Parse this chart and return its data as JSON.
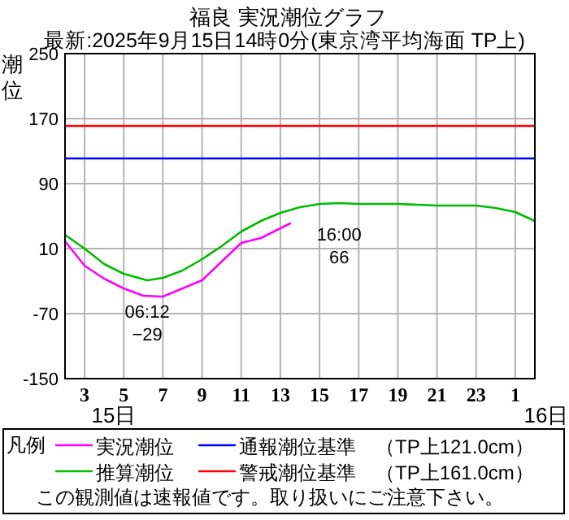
{
  "chart_data": {
    "type": "line",
    "title": "福良 実況潮位グラフ",
    "subtitle": "最新:2025年9月15日14時0分(東京湾平均海面 TP上)",
    "ylabel": "潮位",
    "xlim": [
      "2025-09-15T02:00",
      "2025-09-16T02:00"
    ],
    "xticks": [
      {
        "value": "2025-09-15T03:00",
        "label": "3"
      },
      {
        "value": "2025-09-15T05:00",
        "label": "5"
      },
      {
        "value": "2025-09-15T07:00",
        "label": "7"
      },
      {
        "value": "2025-09-15T09:00",
        "label": "9"
      },
      {
        "value": "2025-09-15T11:00",
        "label": "11"
      },
      {
        "value": "2025-09-15T13:00",
        "label": "13"
      },
      {
        "value": "2025-09-15T15:00",
        "label": "15"
      },
      {
        "value": "2025-09-15T17:00",
        "label": "17"
      },
      {
        "value": "2025-09-15T19:00",
        "label": "19"
      },
      {
        "value": "2025-09-15T21:00",
        "label": "21"
      },
      {
        "value": "2025-09-15T23:00",
        "label": "23"
      },
      {
        "value": "2025-09-16T01:00",
        "label": "1"
      }
    ],
    "ylim": [
      -150,
      250
    ],
    "yticks": [
      -150,
      -70,
      10,
      90,
      170,
      250
    ],
    "grid": true,
    "legend": "bottom",
    "legend_title": "凡例",
    "marker": "none",
    "line_style": "solid",
    "series": [
      {
        "name": "実況潮位",
        "color": "#ff00ff",
        "x": [
          "2025-09-15T02:00",
          "2025-09-15T03:00",
          "2025-09-15T04:00",
          "2025-09-15T05:00",
          "2025-09-15T06:00",
          "2025-09-15T07:00",
          "2025-09-15T08:00",
          "2025-09-15T09:00",
          "2025-09-15T10:00",
          "2025-09-15T11:00",
          "2025-09-15T12:00",
          "2025-09-15T13:00",
          "2025-09-15T13:30"
        ],
        "values": [
          19,
          -11,
          -27,
          -39,
          -48,
          -49,
          -39,
          -29,
          -6,
          17,
          23,
          35,
          41
        ]
      },
      {
        "name": "推算潮位",
        "color": "#00bb00",
        "x": [
          "2025-09-15T02:00",
          "2025-09-15T03:00",
          "2025-09-15T04:00",
          "2025-09-15T05:00",
          "2025-09-15T06:12",
          "2025-09-15T07:00",
          "2025-09-15T08:00",
          "2025-09-15T09:00",
          "2025-09-15T10:00",
          "2025-09-15T11:00",
          "2025-09-15T12:00",
          "2025-09-15T13:00",
          "2025-09-15T14:00",
          "2025-09-15T15:00",
          "2025-09-15T16:00",
          "2025-09-15T17:00",
          "2025-09-15T19:00",
          "2025-09-15T21:00",
          "2025-09-15T23:00",
          "2025-09-16T00:00",
          "2025-09-16T01:00",
          "2025-09-16T02:00"
        ],
        "values": [
          27,
          10,
          -9,
          -21,
          -29,
          -26,
          -17,
          -3,
          13,
          31,
          44,
          54,
          61,
          65,
          66,
          65,
          65,
          63,
          63,
          60,
          55,
          44
        ]
      }
    ],
    "ref_lines": [
      {
        "axis": "y",
        "value": 121,
        "label": "通報潮位基準　（TP上121.0cm）",
        "color": "#0000ff"
      },
      {
        "axis": "y",
        "value": 161,
        "label": "警戒潮位基準　（TP上161.0cm）",
        "color": "#ff0000"
      }
    ],
    "annotations": [
      {
        "text": "06:12\n−29",
        "x": "2025-09-15T06:12",
        "y": -29
      },
      {
        "text": "16:00\n66",
        "x": "2025-09-15T16:00",
        "y": 66
      },
      "15日",
      "16日",
      "この観測値は速報値です。取り扱いにご注意下さい。"
    ]
  }
}
